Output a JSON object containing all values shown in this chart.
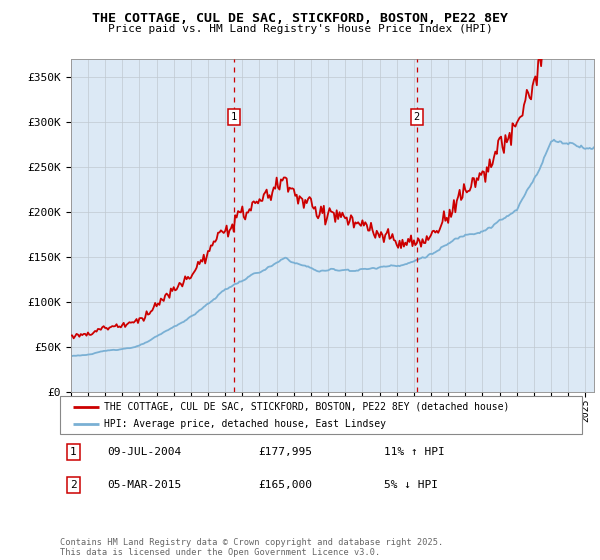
{
  "title": "THE COTTAGE, CUL DE SAC, STICKFORD, BOSTON, PE22 8EY",
  "subtitle": "Price paid vs. HM Land Registry's House Price Index (HPI)",
  "ylim": [
    0,
    370000
  ],
  "xlim_start": 1995.0,
  "xlim_end": 2025.5,
  "sale1_date": 2004.52,
  "sale1_label": "1",
  "sale1_price": 177995,
  "sale2_date": 2015.17,
  "sale2_label": "2",
  "sale2_price": 165000,
  "property_color": "#cc0000",
  "hpi_color": "#7ab0d4",
  "background_color": "#dce9f5",
  "legend_label_property": "THE COTTAGE, CUL DE SAC, STICKFORD, BOSTON, PE22 8EY (detached house)",
  "legend_label_hpi": "HPI: Average price, detached house, East Lindsey",
  "annotation1_date": "09-JUL-2004",
  "annotation1_price": "£177,995",
  "annotation1_hpi": "11% ↑ HPI",
  "annotation2_date": "05-MAR-2015",
  "annotation2_price": "£165,000",
  "annotation2_hpi": "5% ↓ HPI",
  "footer": "Contains HM Land Registry data © Crown copyright and database right 2025.\nThis data is licensed under the Open Government Licence v3.0."
}
